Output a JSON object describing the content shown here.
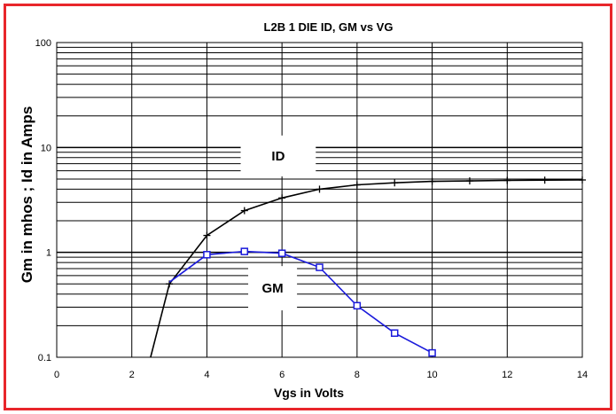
{
  "chart_data": {
    "type": "line",
    "title": "L2B 1 DIE    ID, GM vs VG",
    "xlabel": "Vgs in Volts",
    "ylabel": "Gm in  mhos ;  Id in Amps",
    "xlim": [
      0,
      14
    ],
    "ylim": [
      0.1,
      100
    ],
    "yscale": "log",
    "grid": true,
    "x_ticks": [
      0,
      2,
      4,
      6,
      8,
      10,
      12,
      14
    ],
    "x_tick_labels": [
      "0",
      "2",
      "4",
      "6",
      "8",
      "10",
      "12",
      "14"
    ],
    "y_ticks": [
      0.1,
      1,
      10,
      100
    ],
    "y_tick_labels": [
      "0.1",
      "1",
      "10",
      "100"
    ],
    "series": [
      {
        "name": "ID",
        "color": "#000000",
        "marker": "plus",
        "x": [
          2.5,
          3,
          4,
          5,
          6,
          7,
          8,
          9,
          10,
          11,
          12,
          13,
          14
        ],
        "y": [
          0.1,
          0.5,
          1.45,
          2.5,
          3.3,
          4.0,
          4.4,
          4.6,
          4.75,
          4.8,
          4.85,
          4.88,
          4.9
        ],
        "marker_mask": [
          false,
          true,
          true,
          true,
          true,
          true,
          true,
          true,
          true,
          true,
          true,
          true,
          true
        ]
      },
      {
        "name": "GM",
        "color": "#1a1adb",
        "marker": "square",
        "x": [
          3,
          4,
          5,
          6,
          7,
          8,
          9,
          10
        ],
        "y": [
          0.52,
          0.95,
          1.02,
          0.98,
          0.72,
          0.31,
          0.17,
          0.11
        ],
        "marker_mask": [
          false,
          true,
          true,
          true,
          true,
          true,
          true,
          true
        ]
      }
    ],
    "annotations": [
      {
        "text": "ID",
        "x": 4.9,
        "y": 13,
        "y_bottom": 5.3,
        "x_end": 6.9
      },
      {
        "text": "GM",
        "x": 5.1,
        "y": 0.74,
        "y_bottom": 0.28,
        "x_end": 6.4
      }
    ]
  }
}
